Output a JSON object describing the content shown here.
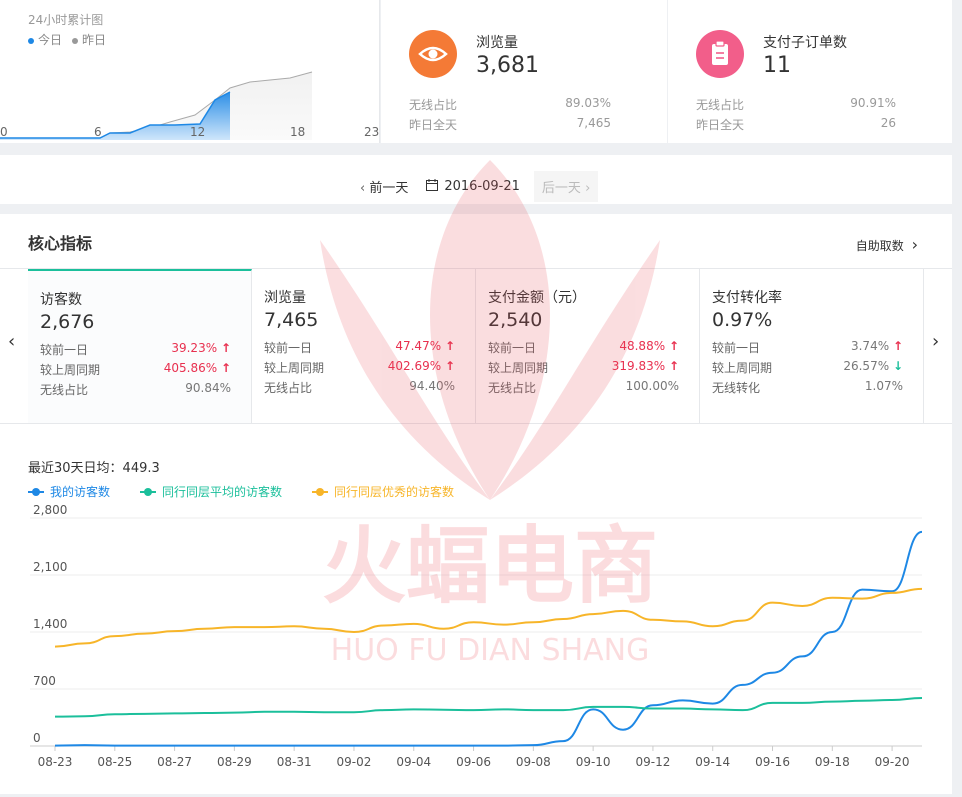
{
  "hourly": {
    "title": "24小时累计图",
    "legend": [
      {
        "label": "今日",
        "color": "#1e88e5"
      },
      {
        "label": "昨日",
        "color": "#999999"
      }
    ],
    "ticks": [
      "0",
      "6",
      "12",
      "18",
      "23"
    ]
  },
  "views_card": {
    "icon": "eye-icon",
    "icon_color": "#f47a36",
    "label": "浏览量",
    "value": "3,681",
    "row1_label": "无线占比",
    "row1_value": "89.03%",
    "row2_label": "昨日全天",
    "row2_value": "7,465"
  },
  "orders_card": {
    "icon": "clipboard-icon",
    "icon_color": "#f25e8a",
    "label": "支付子订单数",
    "value": "11",
    "row1_label": "无线占比",
    "row1_value": "90.91%",
    "row2_label": "昨日全天",
    "row2_value": "26"
  },
  "date_nav": {
    "prev": "前一天",
    "date": "2016-09-21",
    "next": "后一天"
  },
  "core": {
    "title": "核心指标",
    "link": "自助取数",
    "metrics": [
      {
        "title": "访客数",
        "value": "2,676",
        "r1_label": "较前一日",
        "r1_value": "39.23%",
        "r2_label": "较上周同期",
        "r2_value": "405.86%",
        "r3_label": "无线占比",
        "r3_value": "90.84%"
      },
      {
        "title": "浏览量",
        "value": "7,465",
        "r1_label": "较前一日",
        "r1_value": "47.47%",
        "r2_label": "较上周同期",
        "r2_value": "402.69%",
        "r3_label": "无线占比",
        "r3_value": "94.40%"
      },
      {
        "title": "支付金额（元）",
        "value": "2,540",
        "r1_label": "较前一日",
        "r1_value": "48.88%",
        "r2_label": "较上周同期",
        "r2_value": "319.83%",
        "r3_label": "无线占比",
        "r3_value": "100.00%"
      },
      {
        "title": "支付转化率",
        "value": "0.97%",
        "r1_label": "较前一日",
        "r1_value": "3.74%",
        "r2_label": "较上周同期",
        "r2_value": "26.57%",
        "r3_label": "无线转化",
        "r3_value": "1.07%"
      }
    ],
    "avg_label": "最近30天日均：449.3"
  },
  "watermark": {
    "cn": "火蝠电商",
    "en": "HUO FU DIAN SHANG"
  },
  "chart_data": {
    "type": "line",
    "title": "",
    "xlabel": "",
    "ylabel": "",
    "ylim": [
      0,
      2800
    ],
    "yticks": [
      0,
      700,
      1400,
      2100,
      2800
    ],
    "ytick_labels": [
      "0",
      "700",
      "1,400",
      "2,100",
      "2,800"
    ],
    "x": [
      "08-23",
      "08-24",
      "08-25",
      "08-26",
      "08-27",
      "08-28",
      "08-29",
      "08-30",
      "08-31",
      "09-01",
      "09-02",
      "09-03",
      "09-04",
      "09-05",
      "09-06",
      "09-07",
      "09-08",
      "09-09",
      "09-10",
      "09-11",
      "09-12",
      "09-13",
      "09-14",
      "09-15",
      "09-16",
      "09-17",
      "09-18",
      "09-19",
      "09-20",
      "09-21"
    ],
    "xtick_labels": [
      "08-23",
      "08-25",
      "08-27",
      "08-29",
      "08-31",
      "09-02",
      "09-04",
      "09-06",
      "09-08",
      "09-10",
      "09-12",
      "09-14",
      "09-16",
      "09-18",
      "09-20"
    ],
    "series": [
      {
        "name": "我的访客数",
        "color": "#1e88e5",
        "values": [
          5,
          10,
          5,
          5,
          5,
          5,
          5,
          5,
          5,
          5,
          5,
          5,
          5,
          5,
          5,
          5,
          10,
          60,
          450,
          200,
          500,
          560,
          520,
          750,
          900,
          1100,
          1400,
          1920,
          1900,
          2630
        ]
      },
      {
        "name": "同行同层平均的访客数",
        "color": "#1bbf9b",
        "values": [
          360,
          365,
          390,
          395,
          400,
          405,
          410,
          420,
          420,
          415,
          415,
          440,
          450,
          445,
          440,
          450,
          440,
          440,
          480,
          480,
          460,
          460,
          450,
          440,
          530,
          530,
          545,
          555,
          565,
          590
        ]
      },
      {
        "name": "同行同层优秀的访客数",
        "color": "#f7b529",
        "values": [
          1220,
          1260,
          1350,
          1380,
          1410,
          1440,
          1460,
          1460,
          1470,
          1440,
          1400,
          1480,
          1500,
          1440,
          1520,
          1490,
          1520,
          1560,
          1620,
          1660,
          1550,
          1530,
          1470,
          1540,
          1760,
          1720,
          1820,
          1810,
          1880,
          1930
        ]
      }
    ],
    "grid": true,
    "legend_position": "top-left"
  }
}
